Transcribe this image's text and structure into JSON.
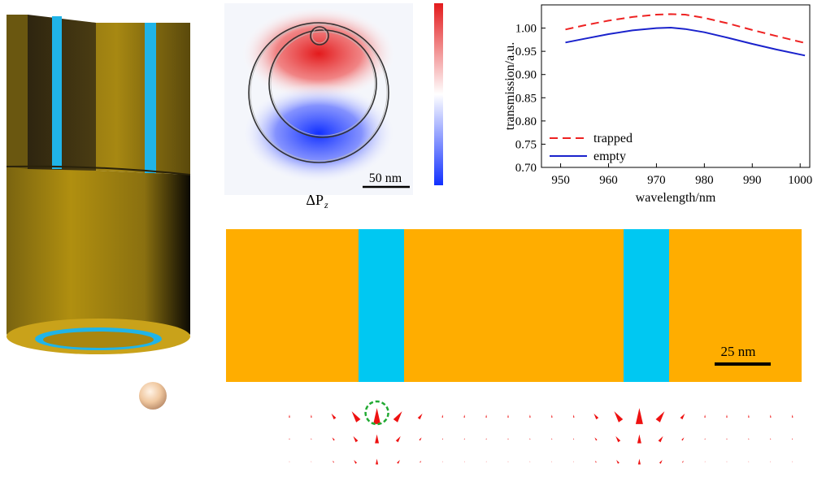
{
  "colors": {
    "gold": "#b08f10",
    "gold_dark": "#3e3212",
    "gold_light": "#e0b820",
    "cyan": "#20b4e8",
    "slab_orange": "#ffad00",
    "slab_cyan": "#00c8f2",
    "trapped": "#ee2222",
    "empty": "#1a22cc",
    "arrow_red": "#ee1111",
    "trap_ring": "#22aa33",
    "particle": "#f0c8a0"
  },
  "field_map": {
    "quantity_symbol": "ΔP",
    "quantity_subscript": "z",
    "scale_label": "50 nm",
    "colorbar_high": "#e31a1c",
    "colorbar_low": "#1130ff"
  },
  "cross_section": {
    "scale_label": "25 nm"
  },
  "arrow_field": {
    "columns": 24,
    "rows": 3,
    "trap_column": 4,
    "cyan_columns": [
      4,
      16
    ]
  },
  "chart_data": {
    "type": "line",
    "title": "",
    "xlabel": "wavelength/nm",
    "ylabel": "transmission/a.u.",
    "xlim": [
      946,
      1002
    ],
    "ylim": [
      0.7,
      1.05
    ],
    "xticks": [
      "950",
      "960",
      "970",
      "980",
      "990",
      "1000"
    ],
    "yticks": [
      "0.70",
      "0.75",
      "0.80",
      "0.85",
      "0.90",
      "0.95",
      "1.00"
    ],
    "xtick_values": [
      950,
      960,
      970,
      980,
      990,
      1000
    ],
    "ytick_values": [
      0.7,
      0.75,
      0.8,
      0.85,
      0.9,
      0.95,
      1.0
    ],
    "legend_position": "bottom-left",
    "series": [
      {
        "name": "trapped",
        "style": "dashed",
        "x": [
          951,
          955,
          960,
          965,
          970,
          973,
          976,
          980,
          985,
          990,
          995,
          1001
        ],
        "y": [
          0.997,
          1.006,
          1.016,
          1.024,
          1.029,
          1.03,
          1.029,
          1.022,
          1.01,
          0.996,
          0.983,
          0.968
        ]
      },
      {
        "name": "empty",
        "style": "solid",
        "x": [
          951,
          955,
          960,
          965,
          970,
          973,
          976,
          980,
          985,
          990,
          995,
          1001
        ],
        "y": [
          0.969,
          0.977,
          0.987,
          0.995,
          1.0,
          1.001,
          0.998,
          0.991,
          0.979,
          0.966,
          0.954,
          0.941
        ]
      }
    ]
  }
}
